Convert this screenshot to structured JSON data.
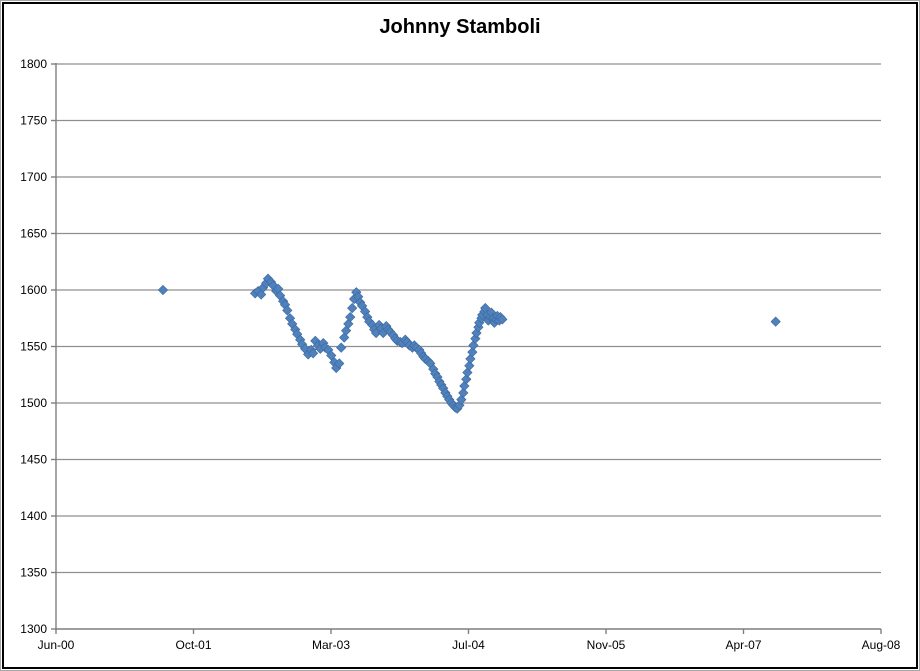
{
  "window": {
    "background": "#ffffff",
    "outer_frame_color": "#a6a6a6",
    "chart_border_color": "#000000"
  },
  "chart_data": {
    "type": "scatter",
    "title": "Johnny Stamboli",
    "marker": "diamond",
    "marker_color": "#4F81BD",
    "gridline_color": "#8f8f8f",
    "axis_color": "#7f7f7f",
    "text_color": "#000000",
    "grid": "horizontal-only",
    "legend": "none",
    "x_axis": {
      "unit": "days since Jun-2000",
      "min": 0,
      "max": 3000,
      "tick_interval": 500,
      "ticks": [
        0,
        500,
        1000,
        1500,
        2000,
        2500,
        3000
      ],
      "tick_labels": [
        "Jun-00",
        "Oct-01",
        "Mar-03",
        "Jul-04",
        "Nov-05",
        "Apr-07",
        "Aug-08"
      ]
    },
    "y_axis": {
      "min": 1300,
      "max": 1800,
      "tick_interval": 50,
      "ticks": [
        1300,
        1350,
        1400,
        1450,
        1500,
        1550,
        1600,
        1650,
        1700,
        1750,
        1800
      ],
      "tick_labels": [
        "1300",
        "1350",
        "1400",
        "1450",
        "1500",
        "1550",
        "1600",
        "1650",
        "1700",
        "1750",
        "1800"
      ]
    },
    "series": [
      {
        "name": "Johnny Stamboli",
        "points": [
          [
            389,
            1600
          ],
          [
            724,
            1597
          ],
          [
            735,
            1599
          ],
          [
            746,
            1596
          ],
          [
            753,
            1602
          ],
          [
            764,
            1606
          ],
          [
            771,
            1610
          ],
          [
            782,
            1607
          ],
          [
            790,
            1604
          ],
          [
            801,
            1599
          ],
          [
            808,
            1601
          ],
          [
            815,
            1595
          ],
          [
            826,
            1590
          ],
          [
            833,
            1587
          ],
          [
            841,
            1582
          ],
          [
            851,
            1575
          ],
          [
            859,
            1570
          ],
          [
            870,
            1565
          ],
          [
            877,
            1561
          ],
          [
            888,
            1556
          ],
          [
            895,
            1552
          ],
          [
            906,
            1548
          ],
          [
            917,
            1543
          ],
          [
            928,
            1547
          ],
          [
            935,
            1544
          ],
          [
            943,
            1555
          ],
          [
            953,
            1551
          ],
          [
            961,
            1548
          ],
          [
            972,
            1553
          ],
          [
            979,
            1549
          ],
          [
            990,
            1547
          ],
          [
            1001,
            1542
          ],
          [
            1012,
            1536
          ],
          [
            1019,
            1531
          ],
          [
            1030,
            1535
          ],
          [
            1037,
            1549
          ],
          [
            1048,
            1558
          ],
          [
            1055,
            1564
          ],
          [
            1063,
            1570
          ],
          [
            1070,
            1576
          ],
          [
            1077,
            1584
          ],
          [
            1084,
            1592
          ],
          [
            1092,
            1598
          ],
          [
            1099,
            1594
          ],
          [
            1106,
            1589
          ],
          [
            1113,
            1586
          ],
          [
            1124,
            1581
          ],
          [
            1132,
            1576
          ],
          [
            1139,
            1572
          ],
          [
            1150,
            1569
          ],
          [
            1157,
            1565
          ],
          [
            1164,
            1562
          ],
          [
            1175,
            1569
          ],
          [
            1183,
            1566
          ],
          [
            1190,
            1562
          ],
          [
            1201,
            1568
          ],
          [
            1208,
            1565
          ],
          [
            1215,
            1563
          ],
          [
            1226,
            1560
          ],
          [
            1234,
            1557
          ],
          [
            1241,
            1555
          ],
          [
            1252,
            1554
          ],
          [
            1259,
            1553
          ],
          [
            1270,
            1556
          ],
          [
            1277,
            1554
          ],
          [
            1285,
            1551
          ],
          [
            1296,
            1549
          ],
          [
            1303,
            1551
          ],
          [
            1310,
            1549
          ],
          [
            1321,
            1547
          ],
          [
            1328,
            1544
          ],
          [
            1336,
            1541
          ],
          [
            1343,
            1539
          ],
          [
            1354,
            1537
          ],
          [
            1361,
            1535
          ],
          [
            1372,
            1530
          ],
          [
            1379,
            1526
          ],
          [
            1387,
            1523
          ],
          [
            1394,
            1519
          ],
          [
            1401,
            1516
          ],
          [
            1408,
            1513
          ],
          [
            1416,
            1509
          ],
          [
            1423,
            1506
          ],
          [
            1430,
            1503
          ],
          [
            1438,
            1500
          ],
          [
            1445,
            1498
          ],
          [
            1452,
            1496
          ],
          [
            1459,
            1495
          ],
          [
            1467,
            1498
          ],
          [
            1474,
            1503
          ],
          [
            1481,
            1509
          ],
          [
            1485,
            1515
          ],
          [
            1492,
            1521
          ],
          [
            1496,
            1527
          ],
          [
            1503,
            1533
          ],
          [
            1507,
            1539
          ],
          [
            1514,
            1545
          ],
          [
            1518,
            1551
          ],
          [
            1525,
            1557
          ],
          [
            1529,
            1562
          ],
          [
            1536,
            1567
          ],
          [
            1539,
            1571
          ],
          [
            1547,
            1575
          ],
          [
            1550,
            1578
          ],
          [
            1558,
            1581
          ],
          [
            1561,
            1584
          ],
          [
            1569,
            1578
          ],
          [
            1572,
            1573
          ],
          [
            1580,
            1576
          ],
          [
            1583,
            1580
          ],
          [
            1590,
            1575
          ],
          [
            1594,
            1571
          ],
          [
            1601,
            1574
          ],
          [
            1605,
            1577
          ],
          [
            1612,
            1573
          ],
          [
            1616,
            1576
          ],
          [
            1623,
            1574
          ],
          [
            2617,
            1572
          ]
        ]
      }
    ]
  }
}
